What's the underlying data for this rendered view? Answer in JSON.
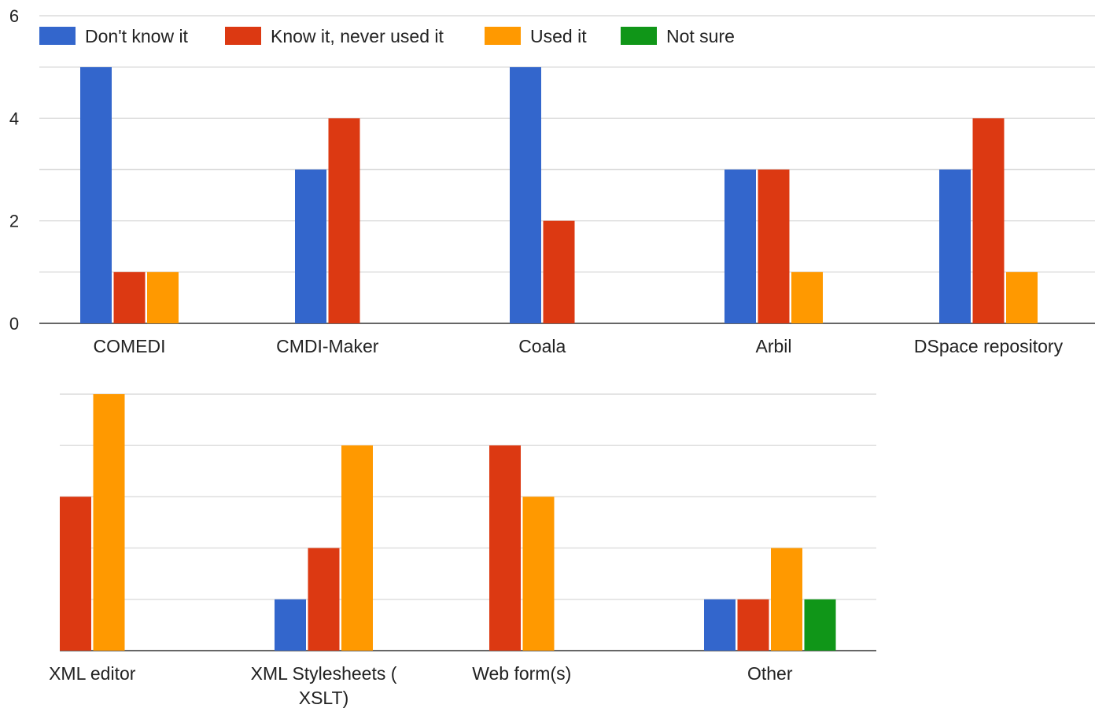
{
  "chart_data": [
    {
      "type": "bar",
      "categories": [
        "COMEDI",
        "CMDI-Maker",
        "Coala",
        "Arbil",
        "DSpace repository"
      ],
      "series": [
        {
          "name": "Don't know it",
          "color": "#3366cc",
          "values": [
            5,
            3,
            5,
            3,
            3
          ]
        },
        {
          "name": "Know it, never used it",
          "color": "#dc3912",
          "values": [
            1,
            4,
            2,
            3,
            4
          ]
        },
        {
          "name": "Used it",
          "color": "#ff9900",
          "values": [
            1,
            0,
            0,
            1,
            1
          ]
        },
        {
          "name": "Not sure",
          "color": "#109618",
          "values": [
            0,
            0,
            0,
            0,
            0
          ]
        }
      ],
      "yticks": [
        "0",
        "2",
        "4",
        "6"
      ],
      "ylim": [
        0,
        6
      ],
      "grid": true,
      "legend": "top"
    },
    {
      "type": "bar",
      "categories": [
        "XML editor",
        "XML Stylesheets ( XSLT)",
        "Web form(s)",
        "Other"
      ],
      "category_lines": [
        [
          "XML editor"
        ],
        [
          "XML Stylesheets (",
          "XSLT)"
        ],
        [
          "Web form(s)"
        ],
        [
          "Other"
        ]
      ],
      "series": [
        {
          "name": "Don't know it",
          "color": "#3366cc",
          "values": [
            0,
            1,
            0,
            1
          ]
        },
        {
          "name": "Know it, never used it",
          "color": "#dc3912",
          "values": [
            3,
            2,
            4,
            1
          ]
        },
        {
          "name": "Used it",
          "color": "#ff9900",
          "values": [
            5,
            4,
            3,
            2
          ]
        },
        {
          "name": "Not sure",
          "color": "#109618",
          "values": [
            0,
            0,
            0,
            1
          ]
        }
      ],
      "yticks": [],
      "ylim": [
        0,
        5
      ],
      "grid": true
    }
  ]
}
